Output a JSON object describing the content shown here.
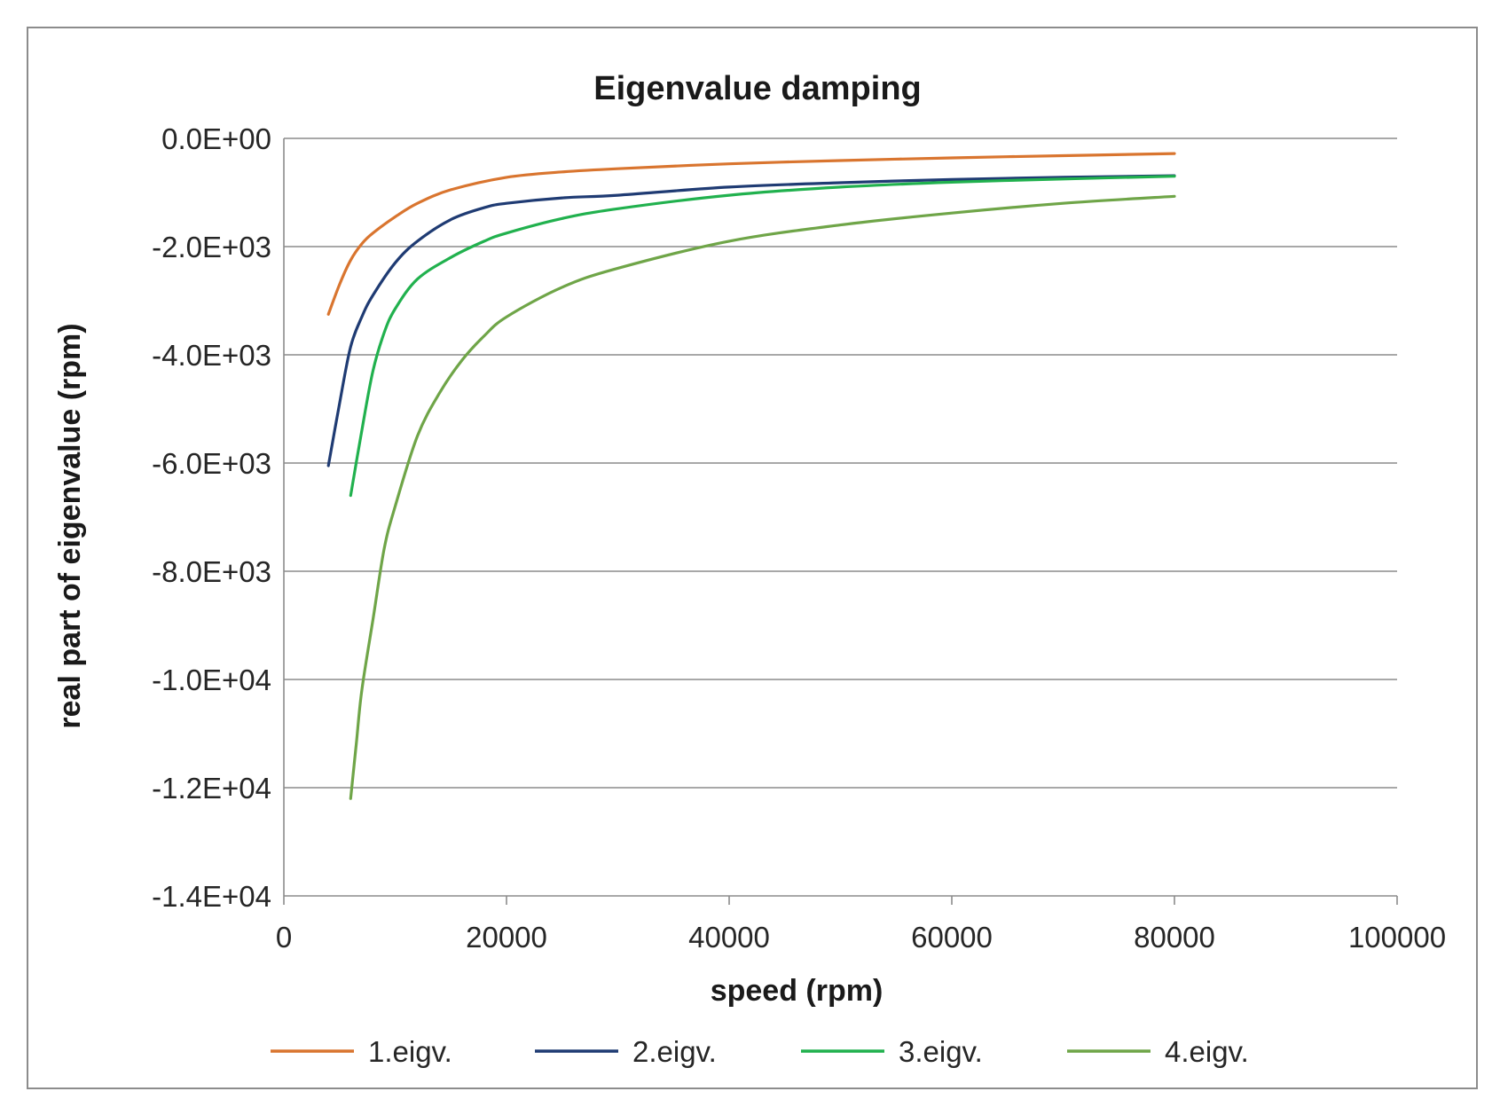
{
  "chart_data": {
    "type": "line",
    "title": "Eigenvalue damping",
    "xlabel": "speed (rpm)",
    "ylabel": "real part of eigenvalue (rpm)",
    "xlim": [
      0,
      100000
    ],
    "ylim": [
      -14000,
      0
    ],
    "x_ticks": [
      0,
      20000,
      40000,
      60000,
      80000,
      100000
    ],
    "x_tick_labels": [
      "0",
      "20000",
      "40000",
      "60000",
      "80000",
      "100000"
    ],
    "y_ticks": [
      0,
      -2000,
      -4000,
      -6000,
      -8000,
      -10000,
      -12000,
      -14000
    ],
    "y_tick_labels": [
      "0.0E+00",
      "-2.0E+03",
      "-4.0E+03",
      "-6.0E+03",
      "-8.0E+03",
      "-1.0E+04",
      "-1.2E+04",
      "-1.4E+04"
    ],
    "grid": "horizontal",
    "legend_position": "bottom",
    "series": [
      {
        "name": "1.eigv.",
        "color": "#d9752f",
        "x": [
          4000,
          5000,
          6000,
          7000,
          8000,
          10000,
          12000,
          15000,
          20000,
          25000,
          30000,
          40000,
          50000,
          60000,
          70000,
          80000
        ],
        "y": [
          -3250,
          -2700,
          -2250,
          -1950,
          -1750,
          -1450,
          -1200,
          -950,
          -720,
          -620,
          -560,
          -470,
          -410,
          -360,
          -320,
          -280
        ]
      },
      {
        "name": "2.eigv.",
        "color": "#1f3b73",
        "x": [
          4000,
          5000,
          6000,
          7000,
          8000,
          10000,
          12000,
          15000,
          18000,
          20000,
          25000,
          30000,
          40000,
          50000,
          60000,
          70000,
          80000
        ],
        "y": [
          -6050,
          -4900,
          -3850,
          -3300,
          -2900,
          -2300,
          -1900,
          -1500,
          -1280,
          -1200,
          -1100,
          -1050,
          -900,
          -820,
          -760,
          -720,
          -690
        ]
      },
      {
        "name": "3.eigv.",
        "color": "#21b14e",
        "x": [
          6000,
          7000,
          8000,
          9000,
          10000,
          12000,
          15000,
          18000,
          20000,
          25000,
          30000,
          40000,
          50000,
          60000,
          70000,
          80000
        ],
        "y": [
          -6600,
          -5400,
          -4300,
          -3600,
          -3150,
          -2600,
          -2200,
          -1900,
          -1750,
          -1480,
          -1300,
          -1050,
          -900,
          -810,
          -750,
          -700
        ]
      },
      {
        "name": "4.eigv.",
        "color": "#6fa548",
        "x": [
          6000,
          6500,
          7000,
          8000,
          9000,
          10000,
          12000,
          14000,
          16000,
          18000,
          20000,
          25000,
          30000,
          40000,
          50000,
          60000,
          70000,
          80000
        ],
        "y": [
          -12200,
          -11200,
          -10200,
          -8900,
          -7600,
          -6800,
          -5500,
          -4700,
          -4100,
          -3650,
          -3300,
          -2750,
          -2400,
          -1900,
          -1600,
          -1380,
          -1200,
          -1070
        ]
      }
    ]
  }
}
